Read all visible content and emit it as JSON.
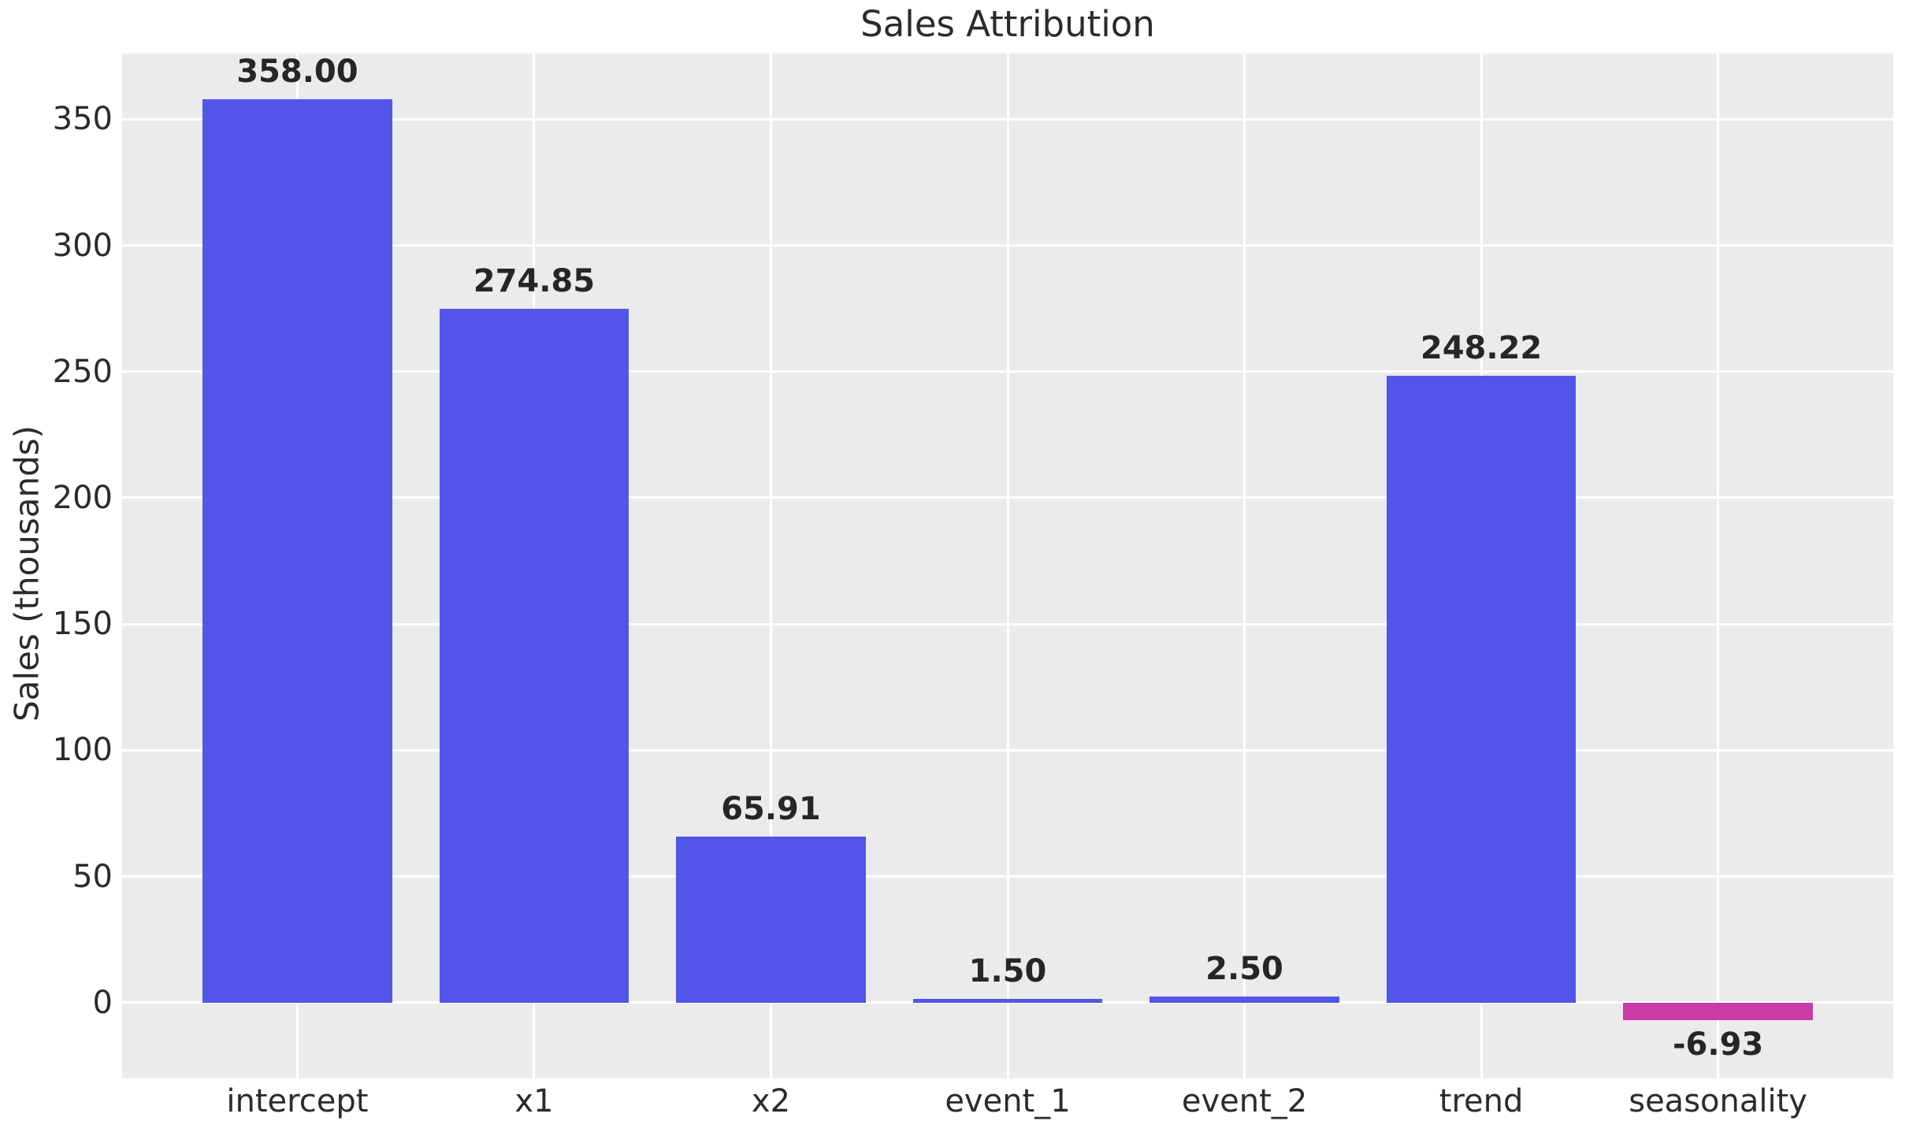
{
  "chart_data": {
    "type": "bar",
    "title": "Sales Attribution",
    "xlabel": "",
    "ylabel": "Sales (thousands)",
    "categories": [
      "intercept",
      "x1",
      "x2",
      "event_1",
      "event_2",
      "trend",
      "seasonality"
    ],
    "values": [
      358.0,
      274.85,
      65.91,
      1.5,
      2.5,
      248.22,
      -6.93
    ],
    "value_labels": [
      "358.00",
      "274.85",
      "65.91",
      "1.50",
      "2.50",
      "248.22",
      "-6.93"
    ],
    "yticks": [
      0,
      50,
      100,
      150,
      200,
      250,
      300,
      350
    ],
    "ylim": [
      -30,
      376
    ],
    "xlim": [
      -0.74,
      6.74
    ],
    "bar_width": 0.8,
    "grid": true,
    "legend": false,
    "colors": {
      "positive_bar": "#5355e8",
      "negative_bar": "#c93ca8",
      "plot_background": "#ebebeb",
      "gridline": "#ffffff",
      "text": "#2b2b2b",
      "value_label_text": "#262626",
      "figure_background": "#ffffff"
    }
  }
}
